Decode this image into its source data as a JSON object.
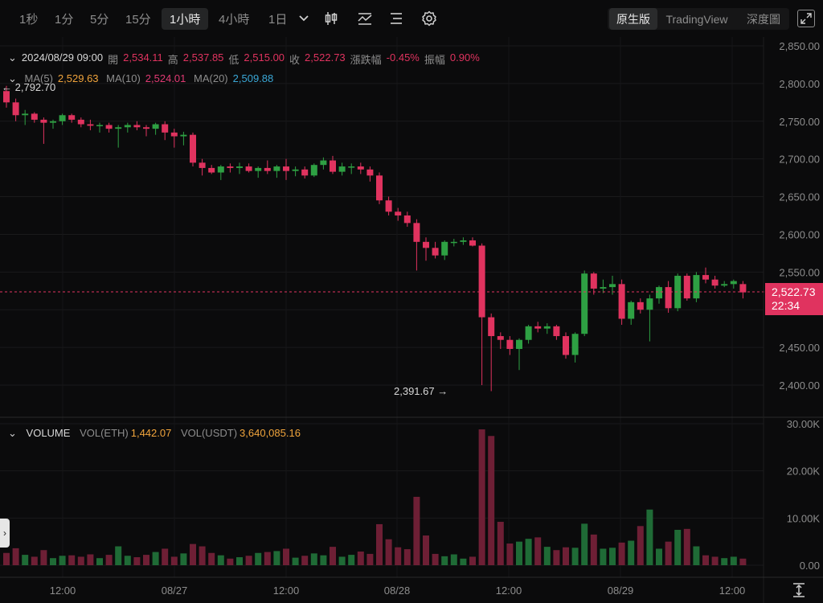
{
  "toolbar": {
    "intervals": [
      "1秒",
      "1分",
      "5分",
      "15分",
      "1小時",
      "4小時",
      "1日"
    ],
    "active_interval": "1小時",
    "views": [
      "原生版",
      "TradingView",
      "深度圖"
    ],
    "active_view": "原生版",
    "icons": [
      "chevron-down-icon",
      "candlestick-type-icon",
      "indicator-icon",
      "list-settings-icon",
      "gear-icon",
      "fullscreen-icon"
    ]
  },
  "ohlc": {
    "datetime": "2024/08/29 09:00",
    "open_label": "開",
    "open": "2,534.11",
    "high_label": "高",
    "high": "2,537.85",
    "low_label": "低",
    "low": "2,515.00",
    "close_label": "收",
    "close": "2,522.73",
    "change_label": "漲跌幅",
    "change": "-0.45%",
    "amplitude_label": "振幅",
    "amplitude": "0.90%"
  },
  "ma": {
    "ma5_label": "MA(5)",
    "ma5": "2,529.63",
    "ma10_label": "MA(10)",
    "ma10": "2,524.01",
    "ma20_label": "MA(20)",
    "ma20": "2,509.88"
  },
  "volume": {
    "title": "VOLUME",
    "eth_label": "VOL(ETH)",
    "eth": "1,442.07",
    "usdt_label": "VOL(USDT)",
    "usdt": "3,640,085.16"
  },
  "current_price": {
    "price": "2,522.73",
    "countdown": "22:34"
  },
  "annotations": {
    "max": "2,792.70",
    "min": "2,391.67"
  },
  "colors": {
    "up": "#2ea043",
    "down": "#e0335f",
    "vol_up": "#1f6b36",
    "vol_down": "#6e1f35",
    "background": "#0b0b0c"
  },
  "chart_data": {
    "type": "candlestick",
    "price_axis": {
      "ticks": [
        "2,850.00",
        "2,800.00",
        "2,750.00",
        "2,700.00",
        "2,650.00",
        "2,600.00",
        "2,550.00",
        "2,500.00",
        "2,450.00",
        "2,400.00"
      ],
      "range": [
        2350,
        2870
      ]
    },
    "volume_axis": {
      "ticks": [
        "30.00K",
        "20.00K",
        "10.00K",
        "0.00"
      ],
      "range": [
        0,
        30000
      ]
    },
    "x_ticks": [
      "12:00",
      "08/27",
      "12:00",
      "08/28",
      "12:00",
      "08/29",
      "12:00"
    ],
    "candles": [
      [
        2790,
        2797,
        2768,
        2775,
        2600
      ],
      [
        2775,
        2780,
        2750,
        2758,
        3600
      ],
      [
        2758,
        2765,
        2745,
        2760,
        2200
      ],
      [
        2760,
        2762,
        2748,
        2752,
        1800
      ],
      [
        2752,
        2755,
        2720,
        2748,
        3200
      ],
      [
        2748,
        2752,
        2740,
        2750,
        1500
      ],
      [
        2750,
        2760,
        2745,
        2758,
        2000
      ],
      [
        2758,
        2760,
        2748,
        2752,
        2100
      ],
      [
        2752,
        2755,
        2742,
        2746,
        1800
      ],
      [
        2746,
        2752,
        2738,
        2744,
        2300
      ],
      [
        2744,
        2748,
        2735,
        2745,
        1500
      ],
      [
        2745,
        2748,
        2735,
        2740,
        2200
      ],
      [
        2740,
        2745,
        2715,
        2742,
        4000
      ],
      [
        2742,
        2748,
        2735,
        2745,
        2000
      ],
      [
        2745,
        2750,
        2738,
        2742,
        1700
      ],
      [
        2742,
        2745,
        2730,
        2740,
        2200
      ],
      [
        2740,
        2748,
        2732,
        2746,
        2800
      ],
      [
        2746,
        2750,
        2725,
        2735,
        3500
      ],
      [
        2735,
        2740,
        2715,
        2730,
        1800
      ],
      [
        2730,
        2736,
        2718,
        2732,
        2500
      ],
      [
        2732,
        2735,
        2690,
        2695,
        4500
      ],
      [
        2695,
        2700,
        2678,
        2688,
        4000
      ],
      [
        2688,
        2692,
        2680,
        2682,
        2600
      ],
      [
        2682,
        2692,
        2672,
        2690,
        2100
      ],
      [
        2690,
        2694,
        2682,
        2688,
        1400
      ],
      [
        2688,
        2695,
        2680,
        2690,
        1700
      ],
      [
        2690,
        2694,
        2682,
        2684,
        2000
      ],
      [
        2684,
        2690,
        2675,
        2688,
        2600
      ],
      [
        2688,
        2698,
        2680,
        2684,
        2800
      ],
      [
        2684,
        2692,
        2675,
        2690,
        3000
      ],
      [
        2690,
        2700,
        2672,
        2684,
        3500
      ],
      [
        2684,
        2690,
        2677,
        2686,
        1600
      ],
      [
        2686,
        2690,
        2674,
        2678,
        2000
      ],
      [
        2678,
        2694,
        2676,
        2692,
        2500
      ],
      [
        2692,
        2702,
        2686,
        2698,
        2100
      ],
      [
        2698,
        2704,
        2680,
        2683,
        3900
      ],
      [
        2683,
        2695,
        2678,
        2690,
        1800
      ],
      [
        2690,
        2694,
        2680,
        2690,
        2200
      ],
      [
        2690,
        2695,
        2680,
        2686,
        2900
      ],
      [
        2686,
        2690,
        2670,
        2678,
        2400
      ],
      [
        2678,
        2682,
        2640,
        2645,
        8700
      ],
      [
        2645,
        2650,
        2625,
        2630,
        5500
      ],
      [
        2630,
        2635,
        2618,
        2625,
        3800
      ],
      [
        2625,
        2630,
        2610,
        2615,
        3400
      ],
      [
        2615,
        2620,
        2552,
        2590,
        14500
      ],
      [
        2590,
        2596,
        2565,
        2582,
        6300
      ],
      [
        2582,
        2590,
        2568,
        2572,
        2400
      ],
      [
        2572,
        2592,
        2566,
        2590,
        1900
      ],
      [
        2590,
        2594,
        2584,
        2590,
        2300
      ],
      [
        2590,
        2596,
        2586,
        2592,
        1400
      ],
      [
        2592,
        2596,
        2584,
        2585,
        1800
      ],
      [
        2585,
        2588,
        2400,
        2490,
        28800
      ],
      [
        2490,
        2495,
        2392,
        2465,
        27400
      ],
      [
        2465,
        2470,
        2448,
        2460,
        9200
      ],
      [
        2460,
        2465,
        2440,
        2448,
        4600
      ],
      [
        2448,
        2462,
        2420,
        2460,
        5000
      ],
      [
        2460,
        2480,
        2455,
        2478,
        5600
      ],
      [
        2478,
        2484,
        2470,
        2475,
        5900
      ],
      [
        2475,
        2482,
        2468,
        2478,
        3900
      ],
      [
        2478,
        2480,
        2460,
        2465,
        3200
      ],
      [
        2465,
        2470,
        2435,
        2440,
        3800
      ],
      [
        2440,
        2470,
        2430,
        2468,
        3700
      ],
      [
        2468,
        2552,
        2465,
        2548,
        8800
      ],
      [
        2548,
        2550,
        2520,
        2528,
        6500
      ],
      [
        2528,
        2540,
        2522,
        2530,
        3500
      ],
      [
        2530,
        2545,
        2520,
        2534,
        3700
      ],
      [
        2534,
        2540,
        2480,
        2488,
        4800
      ],
      [
        2488,
        2512,
        2480,
        2510,
        5200
      ],
      [
        2510,
        2515,
        2495,
        2500,
        8300
      ],
      [
        2500,
        2520,
        2458,
        2515,
        11800
      ],
      [
        2515,
        2532,
        2508,
        2530,
        3500
      ],
      [
        2530,
        2538,
        2496,
        2502,
        5000
      ],
      [
        2502,
        2548,
        2498,
        2545,
        7500
      ],
      [
        2545,
        2548,
        2512,
        2515,
        7700
      ],
      [
        2515,
        2550,
        2510,
        2546,
        4000
      ],
      [
        2546,
        2556,
        2535,
        2540,
        2100
      ],
      [
        2540,
        2545,
        2528,
        2532,
        1800
      ],
      [
        2532,
        2538,
        2530,
        2534,
        1500
      ],
      [
        2534,
        2540,
        2528,
        2538,
        1800
      ],
      [
        2534,
        2538,
        2515,
        2523,
        1400
      ]
    ]
  }
}
